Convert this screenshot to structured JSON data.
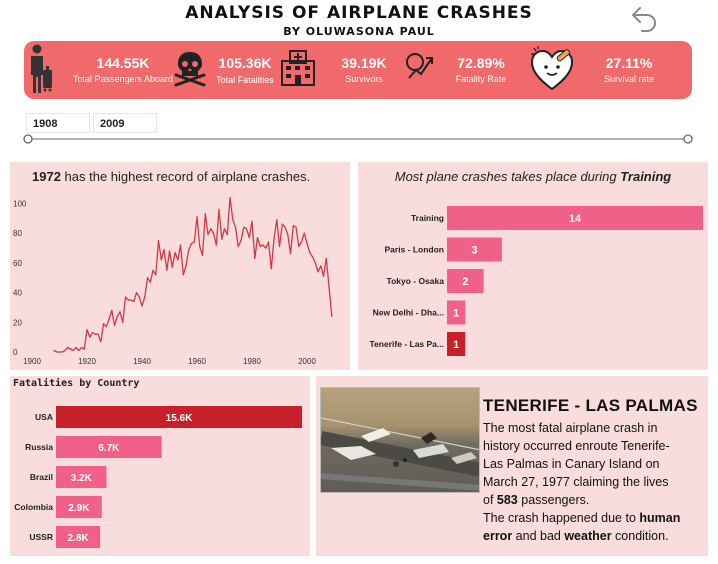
{
  "header": {
    "title": "ANALYSIS OF AIRPLANE CRASHES",
    "subtitle": "BY OLUWASONA PAUL"
  },
  "kpis": [
    {
      "value": "144.55K",
      "label": "Total Passengers Aboard",
      "icon": "passenger-icon"
    },
    {
      "value": "105.36K",
      "label": "Total Fatalities",
      "icon": "skull-icon"
    },
    {
      "value": "39.19K",
      "label": "Survivors",
      "icon": "hospital-icon"
    },
    {
      "value": "72.89%",
      "label": "Fatality Rate",
      "icon": "chart-trend-icon"
    },
    {
      "value": "27.11%",
      "label": "Survival rate",
      "icon": "heart-care-icon"
    }
  ],
  "slicer": {
    "start": "1908",
    "end": "2009",
    "start_fraction": 0.0,
    "end_fraction": 1.0
  },
  "colors": {
    "accent": "#f0696b",
    "panel": "#f9dcdc",
    "line": "#cf3b45",
    "bar_pink": "#f06088",
    "bar_red": "#c8202b"
  },
  "line_panel": {
    "title_bold": "1972",
    "title_rest": " has the highest record of airplane crashes."
  },
  "bar_panel": {
    "title_italic": "Most plane crashes takes place during ",
    "title_bold": "Training"
  },
  "fatal_panel": {
    "title": "Fatalities by Country"
  },
  "tenerife": {
    "heading": "TENERIFE - LAS PALMAS",
    "line1": "The most fatal airplane crash in",
    "line2": "history occurred enroute Tenerife-",
    "line3": "Las Palmas in Canary Island on",
    "line4": "March 27, 1977 claiming the lives",
    "line5_pre": "of ",
    "line5_bold": "583",
    "line5_post": " passengers.",
    "line6_pre": "The crash happened due to ",
    "line6_bold": "human",
    "line7_bold1": "error",
    "line7_mid": " and bad ",
    "line7_bold2": "weather",
    "line7_post": " condition."
  },
  "chart_data": [
    {
      "type": "line",
      "title": "1972 has the highest record of airplane crashes.",
      "x_ticks": [
        "1900",
        "1920",
        "1940",
        "1960",
        "1980",
        "2000"
      ],
      "y_ticks": [
        "0",
        "20",
        "40",
        "60",
        "80",
        "100"
      ],
      "xlim": [
        1900,
        2012
      ],
      "ylim": [
        0,
        105
      ],
      "grid": false,
      "x": [
        1908,
        1909,
        1910,
        1911,
        1912,
        1913,
        1914,
        1915,
        1916,
        1917,
        1918,
        1919,
        1920,
        1921,
        1922,
        1923,
        1924,
        1925,
        1926,
        1927,
        1928,
        1929,
        1930,
        1931,
        1932,
        1933,
        1934,
        1935,
        1936,
        1937,
        1938,
        1939,
        1940,
        1941,
        1942,
        1943,
        1944,
        1945,
        1946,
        1947,
        1948,
        1949,
        1950,
        1951,
        1952,
        1953,
        1954,
        1955,
        1956,
        1957,
        1958,
        1959,
        1960,
        1961,
        1962,
        1963,
        1964,
        1965,
        1966,
        1967,
        1968,
        1969,
        1970,
        1971,
        1972,
        1973,
        1974,
        1975,
        1976,
        1977,
        1978,
        1979,
        1980,
        1981,
        1982,
        1983,
        1984,
        1985,
        1986,
        1987,
        1988,
        1989,
        1990,
        1991,
        1992,
        1993,
        1994,
        1995,
        1996,
        1997,
        1998,
        1999,
        2000,
        2001,
        2002,
        2003,
        2004,
        2005,
        2006,
        2007,
        2008,
        2009
      ],
      "y": [
        1,
        0,
        0,
        0,
        1,
        3,
        2,
        1,
        3,
        1,
        3,
        2,
        15,
        10,
        13,
        12,
        12,
        7,
        19,
        17,
        22,
        28,
        18,
        24,
        27,
        20,
        37,
        35,
        35,
        34,
        40,
        37,
        31,
        37,
        50,
        47,
        55,
        52,
        75,
        62,
        69,
        55,
        68,
        57,
        67,
        62,
        72,
        52,
        58,
        69,
        73,
        74,
        91,
        71,
        65,
        93,
        79,
        83,
        80,
        72,
        96,
        76,
        83,
        79,
        104,
        89,
        84,
        71,
        75,
        84,
        83,
        77,
        88,
        63,
        77,
        71,
        72,
        70,
        74,
        56,
        76,
        89,
        71,
        86,
        84,
        79,
        66,
        85,
        84,
        71,
        74,
        80,
        73,
        67,
        64,
        60,
        54,
        58,
        51,
        63,
        44,
        24
      ]
    },
    {
      "type": "bar",
      "orientation": "horizontal",
      "title": "Most plane crashes takes place during Training",
      "categories": [
        "Training",
        "Paris - London",
        "Tokyo - Osaka",
        "New Delhi - Dha...",
        "Tenerife - Las Pa..."
      ],
      "values": [
        14,
        3,
        2,
        1,
        1
      ],
      "value_labels": [
        "14",
        "3",
        "2",
        "1",
        "1"
      ],
      "colors": [
        "#f06088",
        "#f06088",
        "#f06088",
        "#f06088",
        "#c8202b"
      ]
    },
    {
      "type": "bar",
      "orientation": "horizontal",
      "title": "Fatalities by Country",
      "categories": [
        "USA",
        "Russia",
        "Brazil",
        "Colombia",
        "USSR"
      ],
      "values": [
        15600,
        6700,
        3200,
        2900,
        2800
      ],
      "value_labels": [
        "15.6K",
        "6.7K",
        "3.2K",
        "2.9K",
        "2.8K"
      ],
      "colors": [
        "#c8202b",
        "#f06088",
        "#f06088",
        "#f06088",
        "#f06088"
      ]
    }
  ]
}
